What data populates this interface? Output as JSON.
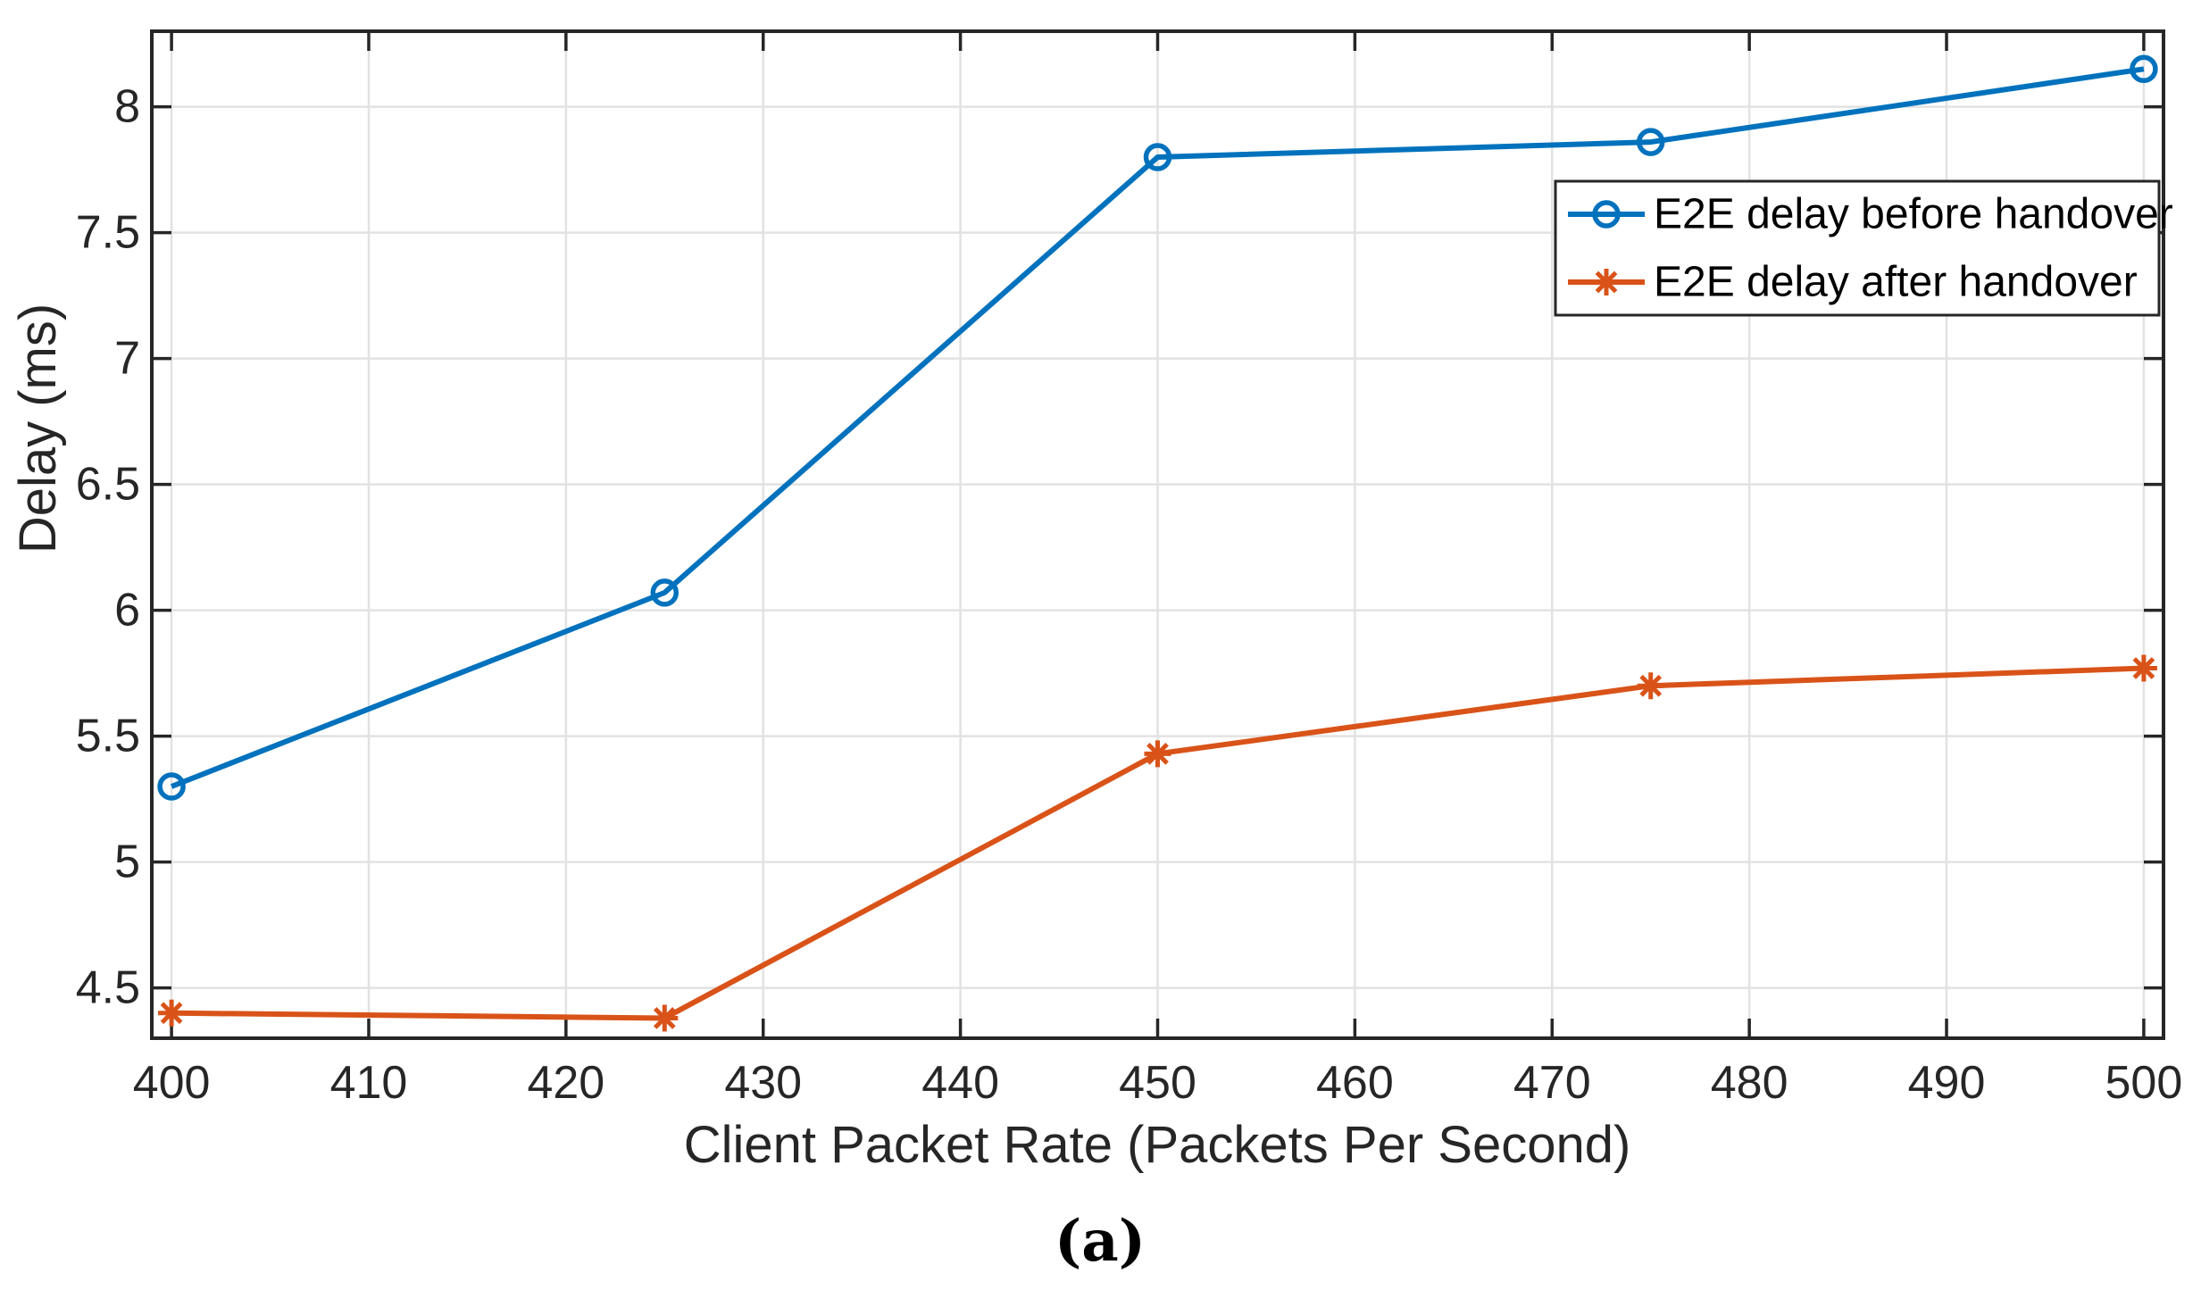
{
  "figure": {
    "caption": "(a)"
  },
  "chart_data": {
    "type": "line",
    "title": "",
    "xlabel": "Client Packet Rate (Packets Per Second)",
    "ylabel": "Delay (ms)",
    "x": [
      400,
      425,
      450,
      475,
      500
    ],
    "series": [
      {
        "name": "E2E delay before handover",
        "values": [
          5.3,
          6.07,
          7.8,
          7.86,
          8.15
        ],
        "color": "#0072BD",
        "marker": "circle"
      },
      {
        "name": "E2E delay after handover",
        "values": [
          4.4,
          4.38,
          5.43,
          5.7,
          5.77
        ],
        "color": "#D95319",
        "marker": "asterisk"
      }
    ],
    "xlim": [
      399,
      501
    ],
    "ylim": [
      4.3,
      8.3
    ],
    "xticks": [
      400,
      410,
      420,
      430,
      440,
      450,
      460,
      470,
      480,
      490,
      500
    ],
    "yticks": [
      4.5,
      5,
      5.5,
      6,
      6.5,
      7,
      7.5,
      8
    ],
    "grid": true,
    "legend_position": "upper right",
    "colors": {
      "axis": "#262626",
      "grid": "#e2e2e2",
      "background": "#ffffff"
    }
  }
}
